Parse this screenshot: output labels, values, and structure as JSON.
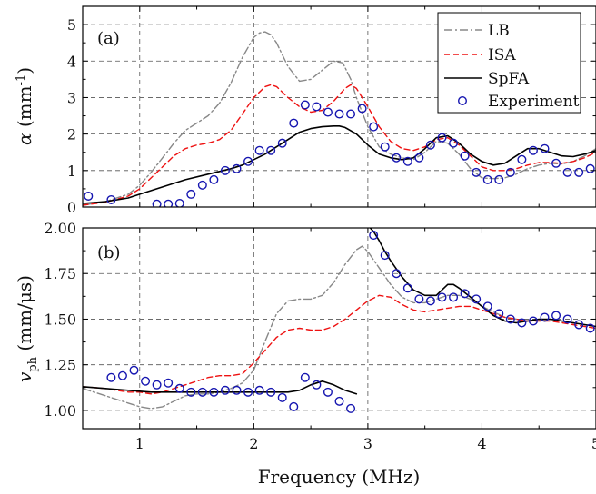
{
  "chart_data": [
    {
      "type": "line",
      "panel_label": "(a)",
      "ylabel_symbol": "α",
      "ylabel_unit": " (mm",
      "ylabel_sup": "-1",
      "ylabel_end": ")",
      "xlim": [
        0.5,
        5
      ],
      "ylim": [
        0,
        5.5
      ],
      "xticks": [
        1,
        2,
        3,
        4,
        5
      ],
      "yticks": [
        0,
        1,
        2,
        3,
        4,
        5
      ],
      "grid": true,
      "legend": {
        "placement": "top-right",
        "entries": [
          {
            "label": "LB",
            "style": "dashdot",
            "color": "#888888"
          },
          {
            "label": "ISA",
            "style": "dashed",
            "color": "#ee1111"
          },
          {
            "label": "SpFA",
            "style": "solid",
            "color": "#000000"
          },
          {
            "label": "Experiment",
            "style": "marker",
            "color": "#1515b0"
          }
        ]
      },
      "series": [
        {
          "name": "LB",
          "color": "#888888",
          "style": "dashdot",
          "x": [
            0.5,
            0.7,
            0.9,
            1.0,
            1.1,
            1.2,
            1.3,
            1.4,
            1.5,
            1.6,
            1.7,
            1.8,
            1.9,
            2.0,
            2.05,
            2.1,
            2.15,
            2.2,
            2.3,
            2.4,
            2.5,
            2.6,
            2.7,
            2.78,
            2.85,
            2.9,
            3.0,
            3.1,
            3.2,
            3.3,
            3.4,
            3.5,
            3.6,
            3.7,
            3.8,
            3.9,
            4.0,
            4.1,
            4.2,
            4.3,
            4.4,
            4.5,
            4.6,
            4.7,
            4.8,
            4.9,
            5.0
          ],
          "y": [
            0.05,
            0.15,
            0.35,
            0.6,
            0.95,
            1.35,
            1.75,
            2.1,
            2.3,
            2.5,
            2.85,
            3.4,
            4.1,
            4.65,
            4.77,
            4.8,
            4.72,
            4.5,
            3.85,
            3.45,
            3.5,
            3.75,
            4.0,
            3.95,
            3.5,
            3.0,
            2.2,
            1.65,
            1.45,
            1.35,
            1.3,
            1.5,
            1.8,
            1.75,
            1.45,
            1.05,
            0.8,
            0.78,
            0.8,
            0.9,
            1.05,
            1.15,
            1.2,
            1.18,
            1.25,
            1.4,
            1.6
          ]
        },
        {
          "name": "ISA",
          "color": "#ee1111",
          "style": "dashed",
          "x": [
            0.5,
            0.7,
            0.9,
            1.0,
            1.1,
            1.2,
            1.3,
            1.4,
            1.5,
            1.6,
            1.7,
            1.8,
            1.9,
            2.0,
            2.1,
            2.15,
            2.2,
            2.3,
            2.4,
            2.5,
            2.6,
            2.7,
            2.8,
            2.85,
            2.9,
            3.0,
            3.1,
            3.2,
            3.3,
            3.4,
            3.5,
            3.6,
            3.7,
            3.8,
            3.9,
            4.0,
            4.1,
            4.2,
            4.3,
            4.4,
            4.5,
            4.6,
            4.7,
            4.8,
            4.9,
            5.0
          ],
          "y": [
            0.05,
            0.13,
            0.3,
            0.5,
            0.8,
            1.1,
            1.4,
            1.6,
            1.7,
            1.75,
            1.85,
            2.1,
            2.55,
            3.0,
            3.3,
            3.35,
            3.3,
            3.0,
            2.75,
            2.6,
            2.65,
            2.9,
            3.25,
            3.35,
            3.25,
            2.75,
            2.2,
            1.8,
            1.6,
            1.55,
            1.65,
            1.85,
            1.9,
            1.7,
            1.4,
            1.1,
            1.0,
            1.0,
            1.05,
            1.15,
            1.22,
            1.22,
            1.2,
            1.25,
            1.35,
            1.5
          ]
        },
        {
          "name": "SpFA",
          "color": "#000000",
          "style": "solid",
          "x": [
            0.5,
            0.7,
            0.9,
            1.0,
            1.2,
            1.4,
            1.6,
            1.8,
            1.9,
            2.0,
            2.1,
            2.2,
            2.3,
            2.4,
            2.5,
            2.6,
            2.7,
            2.75,
            2.8,
            2.9,
            3.0,
            3.1,
            3.2,
            3.3,
            3.4,
            3.5,
            3.6,
            3.7,
            3.8,
            3.9,
            4.0,
            4.1,
            4.2,
            4.3,
            4.4,
            4.5,
            4.6,
            4.7,
            4.8,
            4.9,
            5.0
          ],
          "y": [
            0.1,
            0.15,
            0.25,
            0.35,
            0.55,
            0.75,
            0.9,
            1.05,
            1.15,
            1.3,
            1.45,
            1.65,
            1.85,
            2.05,
            2.15,
            2.2,
            2.22,
            2.22,
            2.18,
            2.0,
            1.7,
            1.45,
            1.35,
            1.3,
            1.35,
            1.6,
            1.9,
            1.95,
            1.75,
            1.45,
            1.25,
            1.15,
            1.2,
            1.4,
            1.6,
            1.6,
            1.5,
            1.4,
            1.38,
            1.45,
            1.55
          ]
        },
        {
          "name": "Experiment",
          "color": "#1515b0",
          "style": "marker",
          "x": [
            0.55,
            0.75,
            1.15,
            1.25,
            1.35,
            1.45,
            1.55,
            1.65,
            1.75,
            1.85,
            1.95,
            2.05,
            2.15,
            2.25,
            2.35,
            2.45,
            2.55,
            2.65,
            2.75,
            2.85,
            2.95,
            3.05,
            3.15,
            3.25,
            3.35,
            3.45,
            3.55,
            3.65,
            3.75,
            3.85,
            3.95,
            4.05,
            4.15,
            4.25,
            4.35,
            4.45,
            4.55,
            4.65,
            4.75,
            4.85,
            4.95
          ],
          "y": [
            0.3,
            0.2,
            0.08,
            0.08,
            0.1,
            0.35,
            0.6,
            0.75,
            1.0,
            1.05,
            1.25,
            1.55,
            1.55,
            1.75,
            2.3,
            2.8,
            2.75,
            2.6,
            2.55,
            2.55,
            2.7,
            2.2,
            1.65,
            1.35,
            1.25,
            1.35,
            1.7,
            1.9,
            1.75,
            1.4,
            0.95,
            0.75,
            0.75,
            0.95,
            1.3,
            1.55,
            1.6,
            1.2,
            0.95,
            0.95,
            1.05
          ]
        }
      ]
    },
    {
      "type": "line",
      "panel_label": "(b)",
      "ylabel_symbol": "v",
      "ylabel_sub": "ph",
      "ylabel_unit": " (mm/μs)",
      "xlabel": "Frequency  (MHz)",
      "xlim": [
        0.5,
        5
      ],
      "ylim": [
        0.9,
        2.0
      ],
      "xticks": [
        1,
        2,
        3,
        4,
        5
      ],
      "yticks": [
        1.0,
        1.25,
        1.5,
        1.75,
        2.0
      ],
      "ytick_labels": [
        "1.00",
        "1.25",
        "1.50",
        "1.75",
        "2.00"
      ],
      "grid": true,
      "series": [
        {
          "name": "LB",
          "color": "#888888",
          "style": "dashdot",
          "x": [
            0.5,
            0.7,
            0.9,
            1.0,
            1.1,
            1.2,
            1.3,
            1.4,
            1.5,
            1.6,
            1.7,
            1.8,
            1.9,
            2.0,
            2.1,
            2.2,
            2.3,
            2.4,
            2.5,
            2.6,
            2.7,
            2.8,
            2.9,
            2.95,
            3.0,
            3.1,
            3.2,
            3.3,
            3.4,
            3.5,
            3.6,
            3.7,
            3.8,
            3.9,
            4.0,
            4.2,
            4.4,
            4.6,
            4.8,
            5.0
          ],
          "y": [
            1.12,
            1.08,
            1.04,
            1.02,
            1.01,
            1.02,
            1.05,
            1.08,
            1.09,
            1.09,
            1.1,
            1.12,
            1.15,
            1.22,
            1.38,
            1.53,
            1.6,
            1.61,
            1.61,
            1.63,
            1.7,
            1.8,
            1.88,
            1.9,
            1.87,
            1.78,
            1.69,
            1.62,
            1.59,
            1.59,
            1.61,
            1.63,
            1.63,
            1.61,
            1.57,
            1.51,
            1.49,
            1.5,
            1.48,
            1.46
          ]
        },
        {
          "name": "ISA",
          "color": "#ee1111",
          "style": "dashed",
          "x": [
            0.5,
            0.7,
            0.9,
            1.0,
            1.1,
            1.2,
            1.3,
            1.4,
            1.5,
            1.6,
            1.7,
            1.8,
            1.9,
            2.0,
            2.1,
            2.2,
            2.3,
            2.4,
            2.5,
            2.6,
            2.7,
            2.8,
            2.9,
            3.0,
            3.1,
            3.2,
            3.3,
            3.4,
            3.5,
            3.6,
            3.7,
            3.8,
            3.9,
            4.0,
            4.2,
            4.4,
            4.6,
            4.8,
            5.0
          ],
          "y": [
            1.13,
            1.12,
            1.1,
            1.1,
            1.09,
            1.1,
            1.12,
            1.14,
            1.16,
            1.18,
            1.19,
            1.19,
            1.2,
            1.26,
            1.33,
            1.4,
            1.44,
            1.45,
            1.44,
            1.44,
            1.46,
            1.5,
            1.55,
            1.6,
            1.63,
            1.62,
            1.58,
            1.55,
            1.54,
            1.55,
            1.56,
            1.57,
            1.57,
            1.55,
            1.51,
            1.49,
            1.49,
            1.47,
            1.45
          ]
        },
        {
          "name": "SpFA",
          "color": "#000000",
          "style": "solid",
          "x": [
            0.5,
            0.7,
            0.9,
            1.1,
            1.3,
            1.5,
            1.7,
            1.9,
            2.0,
            2.1,
            2.2,
            2.3,
            2.4,
            2.5,
            2.6,
            2.7,
            2.8,
            2.9
          ],
          "y": [
            1.13,
            1.12,
            1.11,
            1.1,
            1.1,
            1.1,
            1.1,
            1.1,
            1.1,
            1.1,
            1.1,
            1.1,
            1.11,
            1.14,
            1.16,
            1.14,
            1.11,
            1.09
          ]
        },
        {
          "name": "SpFA",
          "color": "#000000",
          "style": "solid",
          "x": [
            3.02,
            3.05,
            3.1,
            3.15,
            3.2,
            3.3,
            3.4,
            3.5,
            3.6,
            3.65,
            3.7,
            3.75,
            3.8,
            3.9,
            4.0,
            4.1,
            4.2,
            4.3,
            4.4,
            4.5,
            4.6,
            4.7,
            4.8,
            4.9,
            5.0
          ],
          "y": [
            2.0,
            1.98,
            1.93,
            1.87,
            1.82,
            1.73,
            1.66,
            1.63,
            1.63,
            1.66,
            1.69,
            1.69,
            1.67,
            1.62,
            1.57,
            1.52,
            1.49,
            1.48,
            1.49,
            1.5,
            1.5,
            1.49,
            1.48,
            1.47,
            1.46
          ]
        },
        {
          "name": "Experiment",
          "color": "#1515b0",
          "style": "marker",
          "x": [
            0.75,
            0.85,
            0.95,
            1.05,
            1.15,
            1.25,
            1.35,
            1.45,
            1.55,
            1.65,
            1.75,
            1.85,
            1.95,
            2.05,
            2.15,
            2.25,
            2.35,
            2.45,
            2.55,
            2.65,
            2.75,
            2.85,
            3.05,
            3.15,
            3.25,
            3.35,
            3.45,
            3.55,
            3.65,
            3.75,
            3.85,
            3.95,
            4.05,
            4.15,
            4.25,
            4.35,
            4.45,
            4.55,
            4.65,
            4.75,
            4.85,
            4.95
          ],
          "y": [
            1.18,
            1.19,
            1.22,
            1.16,
            1.14,
            1.15,
            1.12,
            1.1,
            1.1,
            1.1,
            1.11,
            1.11,
            1.1,
            1.11,
            1.1,
            1.07,
            1.02,
            1.18,
            1.14,
            1.1,
            1.05,
            1.01,
            1.96,
            1.85,
            1.75,
            1.67,
            1.61,
            1.6,
            1.62,
            1.62,
            1.64,
            1.61,
            1.57,
            1.53,
            1.5,
            1.48,
            1.49,
            1.51,
            1.52,
            1.5,
            1.47,
            1.45
          ]
        }
      ]
    }
  ]
}
